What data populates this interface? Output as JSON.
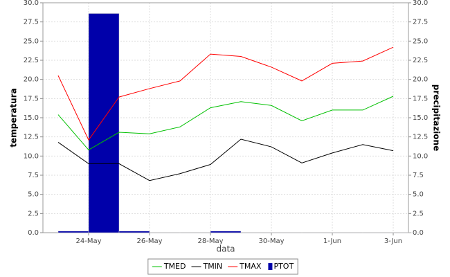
{
  "chart_data": {
    "type": "line",
    "xlabel": "data",
    "ylabel": "temperatura",
    "y2label": "precipitazione",
    "categories": [
      null,
      "24-May",
      null,
      "26-May",
      null,
      "28-May",
      null,
      "30-May",
      null,
      "1-Jun",
      null,
      "3-Jun"
    ],
    "series": [
      {
        "name": "TMED",
        "color": "#00c000",
        "values": [
          15.4,
          10.8,
          13.1,
          12.9,
          13.8,
          16.3,
          17.1,
          16.6,
          14.6,
          16.0,
          16.0,
          17.8
        ]
      },
      {
        "name": "TMIN",
        "color": "#000000",
        "values": [
          11.8,
          9.0,
          9.0,
          6.8,
          7.7,
          8.9,
          12.2,
          11.2,
          9.1,
          10.4,
          11.5,
          10.7
        ]
      },
      {
        "name": "TMAX",
        "color": "#ff0000",
        "values": [
          20.5,
          12.1,
          17.7,
          18.8,
          19.8,
          23.3,
          23.0,
          21.6,
          19.8,
          22.1,
          22.4,
          24.2
        ]
      },
      {
        "name": "PTOT",
        "color": "#0000aa",
        "type": "bar",
        "axis": "y2",
        "values": [
          0.2,
          28.6,
          0.2,
          0,
          0,
          0.2,
          0,
          0,
          0,
          0,
          0,
          0
        ]
      }
    ],
    "ylim": [
      0,
      30
    ],
    "yticks": [
      {
        "value": 0,
        "label": "0.0"
      },
      2.5,
      {
        "value": 5,
        "label": "5.0"
      },
      7.5,
      {
        "value": 10,
        "label": "10.0"
      },
      12.5,
      {
        "value": 15,
        "label": "15.0"
      },
      17.5,
      {
        "value": 20,
        "label": "20.0"
      },
      22.5,
      {
        "value": 25,
        "label": "25.0"
      },
      27.5,
      {
        "value": 30,
        "label": "30.0"
      }
    ],
    "y2lim": [
      0,
      30
    ],
    "y2ticks": [
      {
        "value": 0,
        "label": "0.0"
      },
      2.5,
      {
        "value": 5,
        "label": "5.0"
      },
      7.5,
      {
        "value": 10,
        "label": "10.0"
      },
      12.5,
      {
        "value": 15,
        "label": "15.0"
      },
      17.5,
      {
        "value": 20,
        "label": "20.0"
      },
      22.5,
      {
        "value": 25,
        "label": "25.0"
      },
      27.5,
      {
        "value": 30,
        "label": "30.0"
      }
    ],
    "grid": true,
    "legend": "bottom"
  }
}
